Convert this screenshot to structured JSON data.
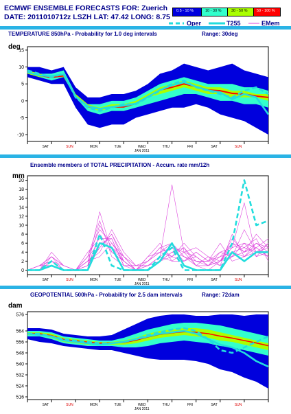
{
  "header": {
    "line1": "ECMWF ENSEMBLE FORECASTS FOR:  Zuerich",
    "line2": "DATE: 2011010712z  LSZH  LAT: 47.42  LONG: 8.75"
  },
  "legend": {
    "bins": [
      {
        "label": "0.5 - 10 %",
        "color": "#0000dd"
      },
      {
        "label": "10 - 30 %",
        "color": "#33ffcc"
      },
      {
        "label": "30 - 50 %",
        "color": "#aaff00"
      },
      {
        "label": "50 - 100 %",
        "color": "#ff0000"
      }
    ],
    "oper": "Oper",
    "t255": "T255",
    "emem": "EMem",
    "line_color": "#22dddd",
    "emem_color": "#dd44dd"
  },
  "colors": {
    "rule": "#2ab3e5",
    "title": "#00008b",
    "weekend": "#dd0000"
  },
  "chart_data": [
    {
      "type": "area",
      "title": "TEMPERATURE 850hPa - Probability for 1.0 deg intervals",
      "range_label": "Range: 30deg",
      "ylabel": "deg",
      "ylim": [
        -12,
        16
      ],
      "yticks": [
        15,
        10,
        5,
        0,
        -5,
        -10
      ],
      "x": [
        0,
        1,
        2,
        3,
        4,
        5,
        6,
        7,
        8,
        9,
        10,
        11,
        12,
        13,
        14,
        15,
        16,
        17,
        18,
        19,
        20
      ],
      "xlim": [
        0,
        20
      ],
      "days": [
        "SAT",
        "SUN",
        "MON",
        "TUE",
        "WED",
        "THU",
        "FRI",
        "SAT",
        "SUN"
      ],
      "weekend": [
        false,
        true,
        false,
        false,
        false,
        false,
        false,
        false,
        true
      ],
      "month_label": "JAN 2011",
      "envelope": {
        "upper": [
          10,
          10,
          9,
          10,
          4,
          1,
          1,
          2,
          2,
          3,
          5,
          8,
          9,
          11,
          10,
          9,
          10,
          11,
          9,
          8,
          7
        ],
        "lower": [
          7,
          6,
          5,
          5,
          -2,
          -7,
          -8,
          -7,
          -7,
          -5,
          -4,
          -3,
          -2,
          -2,
          -1,
          -2,
          -4,
          -5,
          -6,
          -8,
          -10
        ]
      },
      "band_10_30": {
        "upper": [
          9,
          8,
          8,
          9,
          2,
          -1,
          -1,
          0,
          0,
          1,
          3,
          5,
          6,
          7,
          6,
          5,
          5,
          5,
          4,
          4,
          3
        ],
        "lower": [
          8,
          7,
          6,
          7,
          1,
          -3,
          -4,
          -3,
          -3,
          -2,
          -1,
          0,
          1,
          2,
          2,
          1,
          0,
          0,
          -1,
          -1,
          -2
        ]
      },
      "band_30_50": {
        "upper": [
          9,
          8,
          7,
          8,
          2,
          -1,
          -2,
          -1,
          -1,
          0,
          2,
          4,
          5,
          6,
          5,
          4,
          4,
          3,
          3,
          2,
          2
        ],
        "lower": [
          8,
          7,
          7,
          7,
          1,
          -2,
          -3,
          -2,
          -2,
          -1,
          1,
          2,
          3,
          4,
          3,
          2,
          2,
          1,
          1,
          1,
          0
        ]
      },
      "band_50_100": {
        "upper": [
          8.6,
          7.6,
          7.0,
          7.6,
          1.5,
          -1.5,
          -2.2,
          -1.6,
          -1.6,
          -0.6,
          1.4,
          3.4,
          4.2,
          5.2,
          4.4,
          3.4,
          3.2,
          2.4,
          2.2,
          1.6,
          1.2
        ],
        "lower": [
          8.2,
          7.3,
          6.7,
          7.2,
          1.1,
          -1.9,
          -2.6,
          -2.0,
          -2.0,
          -1.0,
          1.0,
          3.0,
          3.8,
          4.8,
          4.0,
          3.0,
          2.8,
          2.0,
          1.8,
          1.2,
          0.8
        ]
      },
      "oper": [
        9,
        8,
        7,
        8,
        1,
        -2,
        -3,
        -2,
        -1,
        -1,
        1,
        3,
        5,
        6,
        4,
        3,
        2,
        1,
        3,
        4,
        2
      ],
      "t255": [
        8.5,
        7.5,
        7.3,
        7.8,
        1.2,
        -1.6,
        -2.4,
        -1.8,
        -1.4,
        -0.8,
        1.2,
        3.2,
        4.6,
        5.5,
        4.2,
        3.1,
        2.5,
        0.5,
        2.0,
        1.0,
        -4.0
      ]
    },
    {
      "type": "line",
      "title": "Ensemble members of TOTAL PRECIPITATION - Accum. rate mm/12h",
      "range_label": "",
      "ylabel": "mm",
      "ylim": [
        -1,
        21
      ],
      "yticks": [
        0,
        2,
        4,
        6,
        8,
        10,
        12,
        14,
        16,
        18,
        20
      ],
      "x": [
        0,
        1,
        2,
        3,
        4,
        5,
        6,
        7,
        8,
        9,
        10,
        11,
        12,
        13,
        14,
        15,
        16,
        17,
        18,
        19,
        20
      ],
      "xlim": [
        0,
        20
      ],
      "days": [
        "SAT",
        "SUN",
        "MON",
        "TUE",
        "WED",
        "THU",
        "FRI",
        "SAT",
        "SUN"
      ],
      "weekend": [
        false,
        true,
        false,
        false,
        false,
        false,
        false,
        false,
        true
      ],
      "month_label": "JAN 2011",
      "oper": [
        0,
        0,
        2,
        0,
        0,
        0,
        8,
        1,
        0,
        0,
        0,
        3,
        5,
        0,
        0,
        0,
        0,
        6,
        20,
        10,
        11
      ],
      "t255": [
        0,
        0,
        1,
        0,
        0,
        0,
        6,
        5,
        0,
        0,
        0,
        2,
        6,
        1,
        0,
        0,
        0,
        4,
        2,
        4,
        4
      ],
      "members": [
        [
          0,
          1,
          3,
          0,
          0,
          3,
          9,
          6,
          2,
          0,
          2,
          4,
          6,
          3,
          1,
          0,
          2,
          6,
          4,
          6,
          5
        ],
        [
          0,
          0,
          2,
          1,
          0,
          2,
          5,
          8,
          3,
          1,
          1,
          2,
          3,
          5,
          2,
          1,
          4,
          3,
          9,
          4,
          3
        ],
        [
          0,
          1,
          1,
          0,
          0,
          1,
          13,
          4,
          2,
          0,
          3,
          6,
          2,
          2,
          4,
          2,
          1,
          8,
          3,
          5,
          7
        ],
        [
          0,
          0,
          4,
          1,
          0,
          4,
          7,
          7,
          1,
          0,
          1,
          3,
          19,
          4,
          1,
          3,
          2,
          5,
          6,
          3,
          4
        ],
        [
          0,
          1,
          2,
          0,
          0,
          2,
          4,
          9,
          4,
          1,
          2,
          5,
          3,
          6,
          3,
          1,
          3,
          4,
          5,
          7,
          2
        ],
        [
          0,
          0,
          1,
          0,
          0,
          1,
          6,
          5,
          2,
          0,
          0,
          2,
          4,
          3,
          2,
          2,
          6,
          2,
          3,
          4,
          6
        ],
        [
          0,
          1,
          3,
          1,
          0,
          3,
          11,
          3,
          1,
          1,
          2,
          4,
          5,
          2,
          3,
          1,
          2,
          7,
          4,
          8,
          5
        ],
        [
          0,
          0,
          2,
          0,
          0,
          2,
          3,
          6,
          3,
          0,
          1,
          3,
          2,
          4,
          5,
          3,
          1,
          3,
          6,
          5,
          3
        ],
        [
          0,
          1,
          1,
          0,
          0,
          1,
          8,
          4,
          2,
          0,
          2,
          5,
          6,
          3,
          2,
          2,
          4,
          5,
          15,
          3,
          6
        ],
        [
          0,
          0,
          3,
          1,
          0,
          3,
          6,
          7,
          1,
          1,
          1,
          2,
          4,
          5,
          1,
          1,
          2,
          4,
          3,
          6,
          4
        ],
        [
          0,
          1,
          2,
          0,
          0,
          2,
          10,
          5,
          3,
          0,
          3,
          4,
          3,
          2,
          4,
          2,
          3,
          6,
          5,
          4,
          5
        ],
        [
          0,
          0,
          1,
          0,
          0,
          1,
          5,
          8,
          2,
          0,
          1,
          3,
          5,
          4,
          3,
          1,
          2,
          3,
          4,
          5,
          3
        ]
      ]
    },
    {
      "type": "area",
      "title": "GEOPOTENTIAL 500hPa - Probability for 2.5 dam intervals",
      "range_label": "Range: 72dam",
      "ylabel": "dam",
      "ylim": [
        514,
        578
      ],
      "yticks": [
        576,
        568,
        560,
        552,
        544,
        536,
        528,
        520,
        516
      ],
      "ytick_labels": [
        "576",
        "564",
        "556",
        "548",
        "540",
        "532",
        "524",
        "516"
      ],
      "ytick_values": [
        576,
        564,
        556,
        548,
        540,
        532,
        524,
        516
      ],
      "x": [
        0,
        1,
        2,
        3,
        4,
        5,
        6,
        7,
        8,
        9,
        10,
        11,
        12,
        13,
        14,
        15,
        16,
        17,
        18,
        19,
        20
      ],
      "xlim": [
        0,
        20
      ],
      "days": [
        "SAT",
        "SUN",
        "MON",
        "TUE",
        "WED",
        "THU",
        "FRI",
        "SAT",
        "SUN"
      ],
      "weekend": [
        false,
        true,
        false,
        false,
        false,
        false,
        false,
        false,
        true
      ],
      "month_label": "JAN 2011",
      "envelope": {
        "upper": [
          566,
          566,
          565,
          562,
          561,
          560,
          560,
          561,
          565,
          569,
          573,
          575,
          576,
          576,
          575,
          575,
          576,
          576,
          575,
          576,
          576
        ],
        "lower": [
          558,
          556,
          555,
          553,
          552,
          551,
          550,
          550,
          548,
          546,
          544,
          543,
          543,
          543,
          542,
          540,
          536,
          534,
          530,
          527,
          522
        ]
      },
      "band_10_30": {
        "upper": [
          564,
          564,
          563,
          560,
          559,
          558,
          557,
          557,
          559,
          562,
          565,
          567,
          569,
          570,
          570,
          569,
          568,
          566,
          564,
          562,
          560
        ],
        "lower": [
          560,
          560,
          558,
          555,
          554,
          553,
          553,
          553,
          552,
          552,
          553,
          555,
          556,
          557,
          556,
          555,
          553,
          552,
          550,
          548,
          546
        ]
      },
      "band_30_50": {
        "upper": [
          563,
          563,
          562,
          559,
          558,
          557,
          556,
          556,
          557,
          559,
          562,
          564,
          565,
          566,
          566,
          565,
          563,
          561,
          559,
          557,
          555
        ],
        "lower": [
          561,
          561,
          559,
          556,
          555,
          554,
          554,
          554,
          554,
          555,
          557,
          559,
          560,
          561,
          560,
          559,
          557,
          556,
          554,
          552,
          550
        ]
      },
      "band_50_100": {
        "upper": [
          562.5,
          562.3,
          561.0,
          558.2,
          557.2,
          556.2,
          555.5,
          555.6,
          556.0,
          557.6,
          560.0,
          562.0,
          563.0,
          563.8,
          563.4,
          562.4,
          560.6,
          559.2,
          557.4,
          555.6,
          553.6
        ],
        "lower": [
          561.5,
          561.3,
          560.0,
          557.2,
          556.2,
          555.2,
          554.7,
          554.8,
          555.2,
          556.8,
          559.2,
          561.2,
          562.2,
          563.0,
          562.6,
          561.6,
          559.8,
          558.4,
          556.6,
          554.8,
          552.8
        ]
      },
      "oper": [
        562,
        562,
        560,
        558,
        557,
        556,
        555,
        555,
        556,
        558,
        561,
        563,
        565,
        566,
        564,
        558,
        550,
        548,
        552,
        556,
        560
      ],
      "t255": [
        562,
        561,
        560,
        557,
        556,
        555,
        554,
        555,
        556,
        558,
        560,
        562,
        563,
        564,
        562,
        558,
        554,
        552,
        548,
        542,
        538
      ]
    }
  ]
}
